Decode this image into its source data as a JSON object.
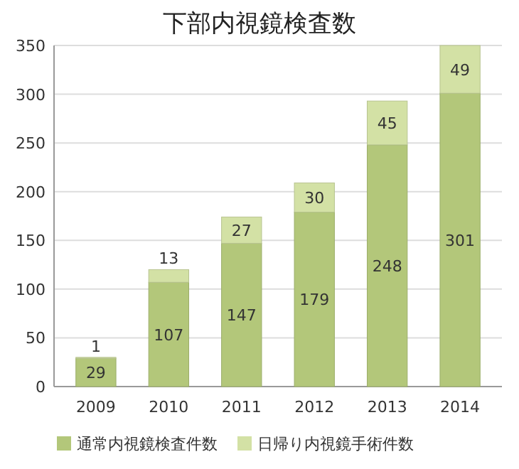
{
  "chart_data": {
    "type": "bar",
    "title": "下部内視鏡検査数",
    "categories": [
      "2009",
      "2010",
      "2011",
      "2012",
      "2013",
      "2014"
    ],
    "series": [
      {
        "name": "通常内視鏡検査件数",
        "color": "#b3c77a",
        "values": [
          29,
          107,
          147,
          179,
          248,
          301
        ]
      },
      {
        "name": "日帰り内視鏡手術件数",
        "color": "#d3e1a5",
        "values": [
          1,
          13,
          27,
          30,
          45,
          49
        ]
      }
    ],
    "stacked": true,
    "ylim": [
      0,
      350
    ],
    "yticks": [
      0,
      50,
      100,
      150,
      200,
      250,
      300,
      350
    ],
    "grid": "y",
    "legend": "bottom",
    "data_labels": true
  }
}
